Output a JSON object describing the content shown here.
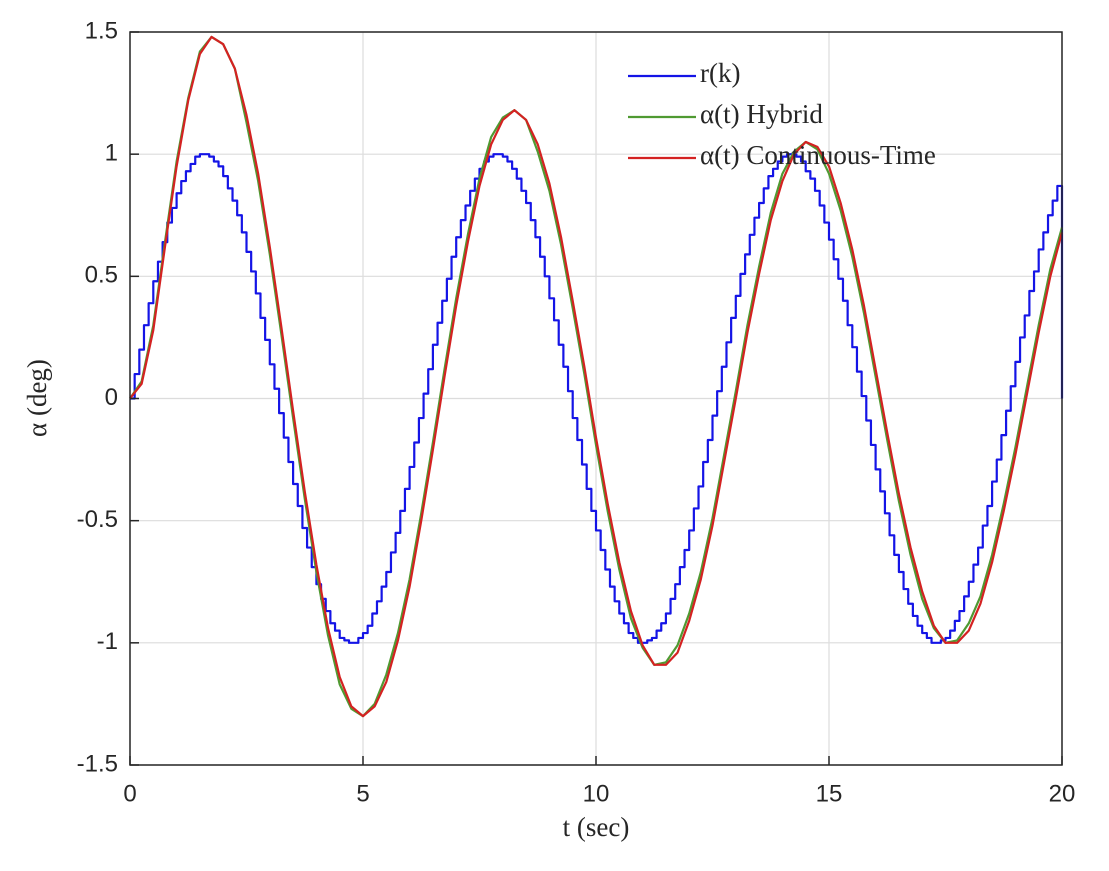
{
  "chart_data": {
    "type": "line",
    "xlabel": "t (sec)",
    "ylabel": "α (deg)",
    "xlim": [
      0,
      20
    ],
    "xticks": [
      0,
      5,
      10,
      15,
      20
    ],
    "ylim": [
      -1.5,
      1.5
    ],
    "yticks": [
      -1.5,
      -1,
      -0.5,
      0,
      0.5,
      1,
      1.5
    ],
    "grid": true,
    "legend": "northeast",
    "series": [
      {
        "name": "r(k)",
        "color": "#1414e6",
        "drawstyle": "steps",
        "x": [
          0,
          0.1,
          0.2,
          0.3,
          0.4,
          0.5,
          0.6,
          0.7,
          0.8,
          0.9,
          1,
          1.1,
          1.2,
          1.3,
          1.4,
          1.5,
          1.6,
          1.7,
          1.8,
          1.9,
          2,
          2.1,
          2.2,
          2.3,
          2.4,
          2.5,
          2.6,
          2.7,
          2.8,
          2.9,
          3,
          3.1,
          3.2,
          3.3,
          3.4,
          3.5,
          3.6,
          3.7,
          3.8,
          3.9,
          4,
          4.1,
          4.2,
          4.3,
          4.4,
          4.5,
          4.6,
          4.7,
          4.8,
          4.9,
          5,
          5.1,
          5.2,
          5.3,
          5.4,
          5.5,
          5.6,
          5.7,
          5.8,
          5.9,
          6,
          6.1,
          6.2,
          6.3,
          6.4,
          6.5,
          6.6,
          6.7,
          6.8,
          6.9,
          7,
          7.1,
          7.2,
          7.3,
          7.4,
          7.5,
          7.6,
          7.7,
          7.8,
          7.9,
          8,
          8.1,
          8.2,
          8.3,
          8.4,
          8.5,
          8.6,
          8.7,
          8.8,
          8.9,
          9,
          9.1,
          9.2,
          9.3,
          9.4,
          9.5,
          9.6,
          9.7,
          9.8,
          9.9,
          10,
          10.1,
          10.2,
          10.3,
          10.4,
          10.5,
          10.6,
          10.7,
          10.8,
          10.9,
          11,
          11.1,
          11.2,
          11.3,
          11.4,
          11.5,
          11.6,
          11.7,
          11.8,
          11.9,
          12,
          12.1,
          12.2,
          12.3,
          12.4,
          12.5,
          12.6,
          12.7,
          12.8,
          12.9,
          13,
          13.1,
          13.2,
          13.3,
          13.4,
          13.5,
          13.6,
          13.7,
          13.8,
          13.9,
          14,
          14.1,
          14.2,
          14.3,
          14.4,
          14.5,
          14.6,
          14.7,
          14.8,
          14.9,
          15,
          15.1,
          15.2,
          15.3,
          15.4,
          15.5,
          15.6,
          15.7,
          15.8,
          15.9,
          16,
          16.1,
          16.2,
          16.3,
          16.4,
          16.5,
          16.6,
          16.7,
          16.8,
          16.9,
          17,
          17.1,
          17.2,
          17.3,
          17.4,
          17.5,
          17.6,
          17.7,
          17.8,
          17.9,
          18,
          18.1,
          18.2,
          18.3,
          18.4,
          18.5,
          18.6,
          18.7,
          18.8,
          18.9,
          19,
          19.1,
          19.2,
          19.3,
          19.4,
          19.5,
          19.6,
          19.7,
          19.8,
          19.9,
          20
        ],
        "values": [
          0,
          0.1,
          0.2,
          0.3,
          0.39,
          0.48,
          0.56,
          0.64,
          0.72,
          0.78,
          0.84,
          0.89,
          0.93,
          0.96,
          0.99,
          1,
          1,
          0.99,
          0.97,
          0.95,
          0.91,
          0.86,
          0.81,
          0.75,
          0.68,
          0.6,
          0.52,
          0.43,
          0.33,
          0.24,
          0.14,
          0.04,
          -0.06,
          -0.16,
          -0.26,
          -0.35,
          -0.44,
          -0.53,
          -0.61,
          -0.69,
          -0.76,
          -0.82,
          -0.87,
          -0.92,
          -0.95,
          -0.98,
          -0.99,
          -1,
          -1,
          -0.98,
          -0.96,
          -0.93,
          -0.88,
          -0.83,
          -0.77,
          -0.71,
          -0.63,
          -0.55,
          -0.46,
          -0.37,
          -0.28,
          -0.18,
          -0.08,
          0.02,
          0.12,
          0.22,
          0.31,
          0.4,
          0.49,
          0.58,
          0.66,
          0.73,
          0.79,
          0.85,
          0.9,
          0.94,
          0.97,
          0.99,
          1,
          1,
          0.99,
          0.97,
          0.94,
          0.9,
          0.85,
          0.8,
          0.73,
          0.66,
          0.58,
          0.5,
          0.41,
          0.32,
          0.22,
          0.13,
          0.03,
          -0.08,
          -0.17,
          -0.27,
          -0.37,
          -0.46,
          -0.54,
          -0.62,
          -0.7,
          -0.77,
          -0.83,
          -0.88,
          -0.92,
          -0.96,
          -0.98,
          -1,
          -1,
          -0.99,
          -0.98,
          -0.95,
          -0.92,
          -0.88,
          -0.82,
          -0.76,
          -0.69,
          -0.62,
          -0.54,
          -0.45,
          -0.36,
          -0.26,
          -0.17,
          -0.07,
          0.03,
          0.13,
          0.23,
          0.33,
          0.42,
          0.51,
          0.59,
          0.67,
          0.74,
          0.8,
          0.86,
          0.91,
          0.94,
          0.97,
          0.99,
          1,
          1,
          0.99,
          0.97,
          0.93,
          0.9,
          0.85,
          0.79,
          0.72,
          0.65,
          0.57,
          0.49,
          0.4,
          0.3,
          0.21,
          0.11,
          0.01,
          -0.09,
          -0.19,
          -0.29,
          -0.38,
          -0.47,
          -0.56,
          -0.64,
          -0.71,
          -0.78,
          -0.84,
          -0.89,
          -0.93,
          -0.96,
          -0.98,
          -1,
          -1,
          -0.99,
          -0.98,
          -0.95,
          -0.91,
          -0.87,
          -0.81,
          -0.75,
          -0.68,
          -0.61,
          -0.52,
          -0.44,
          -0.34,
          -0.25,
          -0.15,
          -0.05,
          0.05,
          0.15,
          0.25,
          0.34,
          0.44,
          0.52,
          0.61,
          0.68,
          0.75,
          0.81,
          0.87,
          0
        ]
      },
      {
        "name": "α(t) Hybrid",
        "color": "#4f9a32",
        "x": [
          0,
          0.25,
          0.5,
          0.75,
          1,
          1.25,
          1.5,
          1.75,
          2,
          2.25,
          2.5,
          2.75,
          3,
          3.25,
          3.5,
          3.75,
          4,
          4.25,
          4.5,
          4.75,
          5,
          5.25,
          5.5,
          5.75,
          6,
          6.25,
          6.5,
          6.75,
          7,
          7.25,
          7.5,
          7.75,
          8,
          8.25,
          8.5,
          8.75,
          9,
          9.25,
          9.5,
          9.75,
          10,
          10.25,
          10.5,
          10.75,
          11,
          11.25,
          11.5,
          11.75,
          12,
          12.25,
          12.5,
          12.75,
          13,
          13.25,
          13.5,
          13.75,
          14,
          14.25,
          14.5,
          14.75,
          15,
          15.25,
          15.5,
          15.75,
          16,
          16.25,
          16.5,
          16.75,
          17,
          17.25,
          17.5,
          17.75,
          18,
          18.25,
          18.5,
          18.75,
          19,
          19.25,
          19.5,
          19.75,
          20
        ],
        "values": [
          0,
          0.07,
          0.3,
          0.64,
          0.97,
          1.23,
          1.42,
          1.48,
          1.45,
          1.35,
          1.13,
          0.89,
          0.59,
          0.26,
          -0.08,
          -0.41,
          -0.71,
          -0.97,
          -1.17,
          -1.27,
          -1.3,
          -1.25,
          -1.13,
          -0.96,
          -0.74,
          -0.47,
          -0.18,
          0.12,
          0.41,
          0.67,
          0.9,
          1.07,
          1.15,
          1.18,
          1.14,
          1.01,
          0.85,
          0.63,
          0.37,
          0.1,
          -0.19,
          -0.46,
          -0.7,
          -0.9,
          -1.02,
          -1.09,
          -1.08,
          -1.01,
          -0.88,
          -0.71,
          -0.49,
          -0.23,
          0.03,
          0.3,
          0.54,
          0.76,
          0.92,
          1.01,
          1.05,
          1.02,
          0.92,
          0.77,
          0.58,
          0.35,
          0.09,
          -0.17,
          -0.42,
          -0.64,
          -0.82,
          -0.94,
          -1,
          -0.99,
          -0.92,
          -0.81,
          -0.64,
          -0.43,
          -0.2,
          0.05,
          0.3,
          0.53,
          0.7
        ]
      },
      {
        "name": "α(t) Continuous-Time",
        "color": "#d42222",
        "x": [
          0,
          0.25,
          0.5,
          0.75,
          1,
          1.25,
          1.5,
          1.75,
          2,
          2.25,
          2.5,
          2.75,
          3,
          3.25,
          3.5,
          3.75,
          4,
          4.25,
          4.5,
          4.75,
          5,
          5.25,
          5.5,
          5.75,
          6,
          6.25,
          6.5,
          6.75,
          7,
          7.25,
          7.5,
          7.75,
          8,
          8.25,
          8.5,
          8.75,
          9,
          9.25,
          9.5,
          9.75,
          10,
          10.25,
          10.5,
          10.75,
          11,
          11.25,
          11.5,
          11.75,
          12,
          12.25,
          12.5,
          12.75,
          13,
          13.25,
          13.5,
          13.75,
          14,
          14.25,
          14.5,
          14.75,
          15,
          15.25,
          15.5,
          15.75,
          16,
          16.25,
          16.5,
          16.75,
          17,
          17.25,
          17.5,
          17.75,
          18,
          18.25,
          18.5,
          18.75,
          19,
          19.25,
          19.5,
          19.75,
          20
        ],
        "values": [
          0,
          0.06,
          0.28,
          0.62,
          0.95,
          1.22,
          1.41,
          1.48,
          1.45,
          1.35,
          1.16,
          0.92,
          0.62,
          0.29,
          -0.05,
          -0.38,
          -0.68,
          -0.94,
          -1.14,
          -1.26,
          -1.3,
          -1.26,
          -1.16,
          -0.99,
          -0.77,
          -0.5,
          -0.21,
          0.09,
          0.38,
          0.64,
          0.87,
          1.04,
          1.14,
          1.18,
          1.14,
          1.04,
          0.88,
          0.66,
          0.4,
          0.13,
          -0.16,
          -0.43,
          -0.67,
          -0.87,
          -1.01,
          -1.09,
          -1.09,
          -1.04,
          -0.91,
          -0.74,
          -0.52,
          -0.26,
          0,
          0.27,
          0.51,
          0.73,
          0.89,
          1,
          1.05,
          1.03,
          0.95,
          0.8,
          0.61,
          0.38,
          0.12,
          -0.14,
          -0.39,
          -0.61,
          -0.79,
          -0.93,
          -1,
          -1,
          -0.95,
          -0.84,
          -0.67,
          -0.46,
          -0.23,
          0.02,
          0.27,
          0.5,
          0.68
        ]
      }
    ]
  }
}
